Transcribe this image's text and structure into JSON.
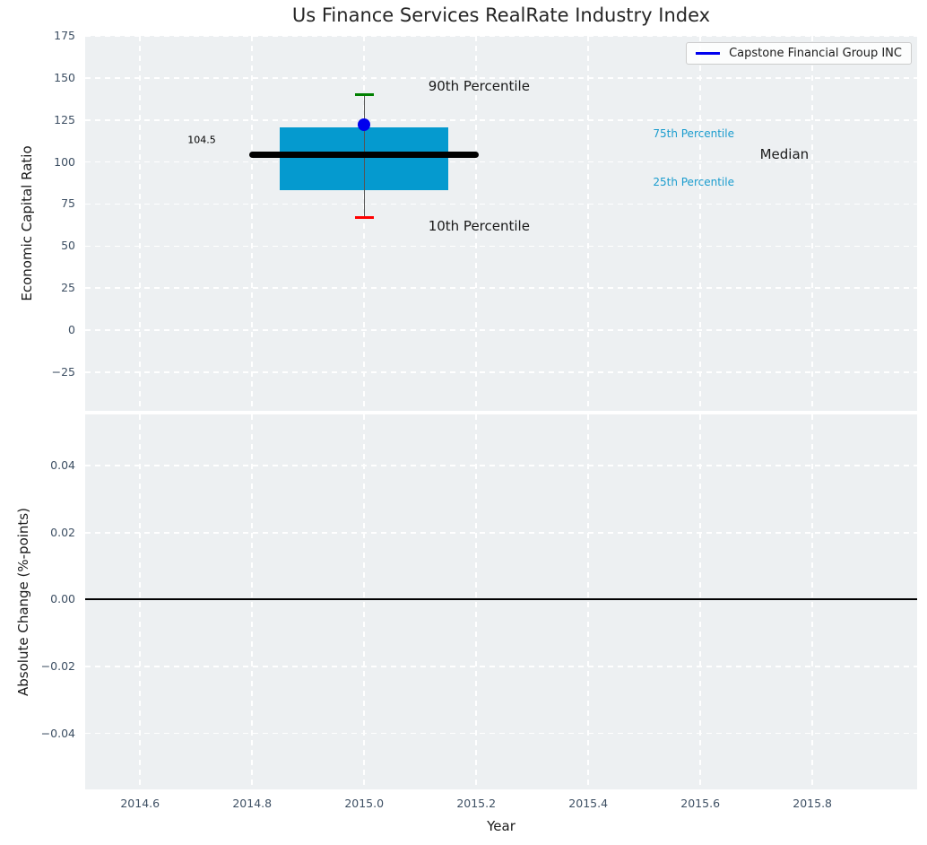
{
  "title": "Us Finance Services RealRate Industry Index",
  "legend": {
    "label": "Capstone Financial Group INC",
    "line_color": "#0000ee"
  },
  "x_axis": {
    "label": "Year",
    "lim": [
      2014.502,
      2015.987
    ],
    "ticks": [
      {
        "v": 2014.6,
        "label": "2014.6"
      },
      {
        "v": 2014.8,
        "label": "2014.8"
      },
      {
        "v": 2015.0,
        "label": "2015.0"
      },
      {
        "v": 2015.2,
        "label": "2015.2"
      },
      {
        "v": 2015.4,
        "label": "2015.4"
      },
      {
        "v": 2015.6,
        "label": "2015.6"
      },
      {
        "v": 2015.8,
        "label": "2015.8"
      }
    ]
  },
  "colors": {
    "plot_bg": "#edf0f2",
    "grid": "#ffffff",
    "box_fill": "#059acf",
    "median_line": "#000000",
    "whisker": "#555555",
    "cap_90": "#008000",
    "cap_10": "#ff0000",
    "company_point": "#0000ee",
    "tick_label": "#3d4f63",
    "zero_line": "#000000",
    "percentile_label": "#1a9cce"
  },
  "chart_data": [
    {
      "type": "boxplot",
      "title": "Us Finance Services RealRate Industry Index",
      "ylabel": "Economic Capital Ratio",
      "ylim": [
        -48,
        175
      ],
      "grid": "white dashed, on",
      "yticks": [
        {
          "v": 175,
          "label": "175"
        },
        {
          "v": 150,
          "label": "150"
        },
        {
          "v": 125,
          "label": "125"
        },
        {
          "v": 100,
          "label": "100"
        },
        {
          "v": 75,
          "label": "75"
        },
        {
          "v": 50,
          "label": "50"
        },
        {
          "v": 25,
          "label": "25"
        },
        {
          "v": 0,
          "label": "0"
        },
        {
          "v": -25,
          "label": "−25"
        }
      ],
      "box": {
        "x_center": 2015.0,
        "p10": 67,
        "p25": 83,
        "median": 104.5,
        "p75": 120.5,
        "p90": 140,
        "box_halfwidth": 0.15,
        "median_line_halfwidth": 0.205,
        "cap_halfwidth": 0.017
      },
      "company_point": {
        "name": "Capstone Financial Group INC",
        "x": 2015.0,
        "y": 122
      },
      "annotations": [
        {
          "text": "104.5",
          "x": 2014.71,
          "y": 113,
          "size": 11,
          "color": "#000000",
          "name": "median-value-label"
        },
        {
          "text": "90th Percentile",
          "x": 2015.205,
          "y": 145,
          "size": 15,
          "color": "#1a1a1a",
          "name": "p90-label"
        },
        {
          "text": "10th Percentile",
          "x": 2015.205,
          "y": 62,
          "size": 15,
          "color": "#1a1a1a",
          "name": "p10-label"
        },
        {
          "text": "75th Percentile",
          "x": 2015.588,
          "y": 117,
          "size": 12,
          "color": "#1a9cce",
          "name": "p75-label"
        },
        {
          "text": "25th Percentile",
          "x": 2015.588,
          "y": 88,
          "size": 12,
          "color": "#1a9cce",
          "name": "p25-label"
        },
        {
          "text": "Median",
          "x": 2015.75,
          "y": 104.5,
          "size": 15,
          "color": "#1a1a1a",
          "name": "median-label"
        }
      ]
    },
    {
      "type": "line",
      "ylabel": "Absolute Change (%-points)",
      "ylim": [
        -0.0567,
        0.0553
      ],
      "grid": "white dashed, on",
      "yticks": [
        {
          "v": 0.04,
          "label": "0.04"
        },
        {
          "v": 0.02,
          "label": "0.02"
        },
        {
          "v": 0.0,
          "label": "0.00"
        },
        {
          "v": -0.02,
          "label": "−0.02"
        },
        {
          "v": -0.04,
          "label": "−0.04"
        }
      ],
      "zero_line_y": 0.0,
      "series": []
    }
  ]
}
